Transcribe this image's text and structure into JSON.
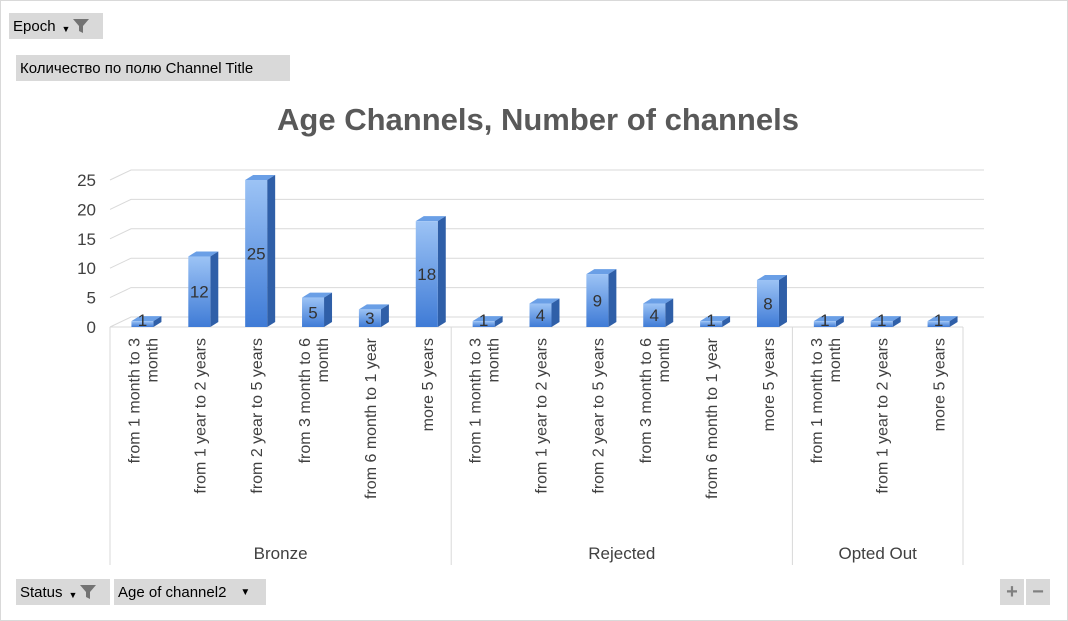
{
  "filters": {
    "epoch_label": "Epoch",
    "count_label": "Количество по полю Channel Title",
    "status_label": "Status",
    "age_label": "Age of channel2"
  },
  "zoom": {
    "plus": "+",
    "minus": "−"
  },
  "icons": {
    "filter": "funnel-icon",
    "dropdown": "chevron-down-icon"
  },
  "chart_data": {
    "type": "bar",
    "title": "Age Channels, Number of channels",
    "ylim": [
      0,
      25
    ],
    "yticks": [
      0,
      5,
      10,
      15,
      20,
      25
    ],
    "grid": true,
    "bar_color": "#4a86d8",
    "groups": [
      {
        "name": "Bronze",
        "categories": [
          {
            "label": "from 1 month to 3 month",
            "lines": [
              "from 1 month to 3",
              "month"
            ],
            "value": 1
          },
          {
            "label": "from 1 year to 2 years",
            "lines": [
              "from 1 year to 2 years"
            ],
            "value": 12
          },
          {
            "label": "from 2 year to 5 years",
            "lines": [
              "from 2 year to 5 years"
            ],
            "value": 25
          },
          {
            "label": "from 3 month to 6 month",
            "lines": [
              "from 3 month to 6",
              "month"
            ],
            "value": 5
          },
          {
            "label": "from 6 month to 1 year",
            "lines": [
              "from 6 month to 1 year"
            ],
            "value": 3
          },
          {
            "label": "more 5 years",
            "lines": [
              "more 5 years"
            ],
            "value": 18
          }
        ]
      },
      {
        "name": "Rejected",
        "categories": [
          {
            "label": "from 1 month to 3 month",
            "lines": [
              "from 1 month to 3",
              "month"
            ],
            "value": 1
          },
          {
            "label": "from 1 year to 2 years",
            "lines": [
              "from 1 year to 2 years"
            ],
            "value": 4
          },
          {
            "label": "from 2 year to 5 years",
            "lines": [
              "from 2 year to 5 years"
            ],
            "value": 9
          },
          {
            "label": "from 3 month to 6 month",
            "lines": [
              "from 3 month to 6",
              "month"
            ],
            "value": 4
          },
          {
            "label": "from 6 month to 1 year",
            "lines": [
              "from 6 month to 1 year"
            ],
            "value": 1
          },
          {
            "label": "more 5 years",
            "lines": [
              "more 5 years"
            ],
            "value": 8
          }
        ]
      },
      {
        "name": "Opted Out",
        "categories": [
          {
            "label": "from 1 month to 3 month",
            "lines": [
              "from 1 month to 3",
              "month"
            ],
            "value": 1
          },
          {
            "label": "from 1 year to 2 years",
            "lines": [
              "from 1 year to 2 years"
            ],
            "value": 1
          },
          {
            "label": "more 5 years",
            "lines": [
              "more 5 years"
            ],
            "value": 1
          }
        ]
      }
    ]
  }
}
